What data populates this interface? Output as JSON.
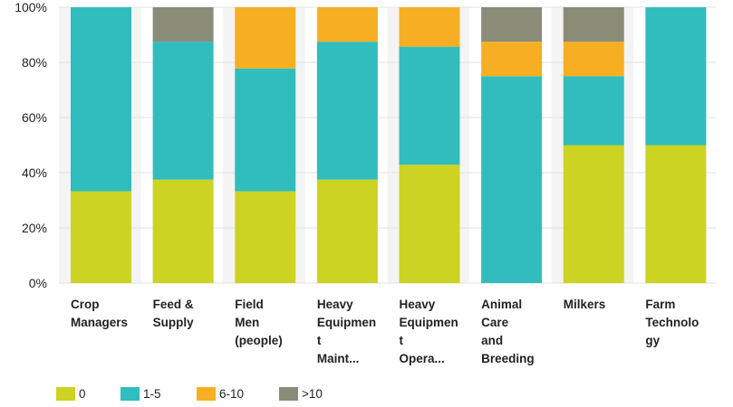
{
  "chart_data": {
    "type": "bar",
    "stacked": true,
    "percent": true,
    "categories": [
      "Crop Managers",
      "Feed & Supply",
      "Field Men (people)",
      "Heavy Equipment Maint...",
      "Heavy Equipment Opera...",
      "Animal Care and Breeding",
      "Milkers",
      "Farm Technology"
    ],
    "category_label_lines": [
      [
        "Crop",
        "Managers"
      ],
      [
        "Feed &",
        "Supply"
      ],
      [
        "Field",
        "Men",
        "(people)"
      ],
      [
        "Heavy",
        "Equipmen",
        "t",
        "Maint..."
      ],
      [
        "Heavy",
        "Equipmen",
        "t",
        "Opera..."
      ],
      [
        "Animal",
        "Care",
        "and",
        "Breeding"
      ],
      [
        "Milkers"
      ],
      [
        "Farm",
        "Technolo",
        "gy"
      ]
    ],
    "series": [
      {
        "name": "0",
        "color": "#cdd322",
        "values": [
          33.3,
          37.5,
          33.3,
          37.5,
          42.9,
          0,
          50,
          50
        ]
      },
      {
        "name": "1-5",
        "color": "#31bdbd",
        "values": [
          66.7,
          50,
          44.5,
          50,
          42.8,
          75,
          25,
          50
        ]
      },
      {
        "name": "6-10",
        "color": "#f6af22",
        "values": [
          0,
          0,
          22.2,
          12.5,
          14.3,
          12.5,
          12.5,
          0
        ]
      },
      {
        "name": ">10",
        "color": "#8a8c78",
        "values": [
          0,
          12.5,
          0,
          0,
          0,
          12.5,
          12.5,
          0
        ]
      }
    ],
    "y_ticks": [
      "0%",
      "20%",
      "40%",
      "60%",
      "80%",
      "100%"
    ],
    "ylim": [
      0,
      100
    ],
    "grid": true,
    "legend": "bottom-left",
    "title": "",
    "xlabel": "",
    "ylabel": ""
  }
}
